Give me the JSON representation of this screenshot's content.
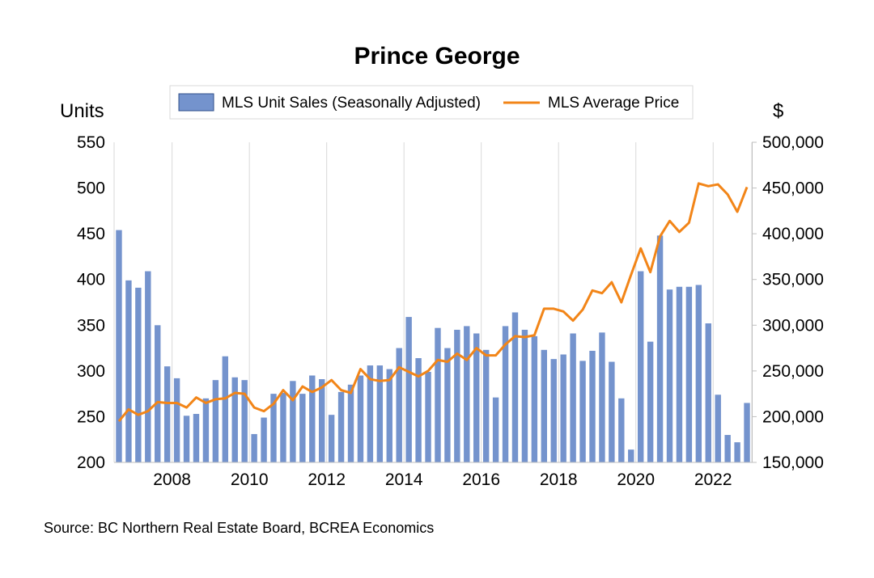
{
  "chart_data": {
    "type": "bar+line",
    "title": "Prince George",
    "y_left_label": "Units",
    "y_right_label": "$",
    "y_left_range": [
      200,
      550
    ],
    "y_left_ticks": [
      "200",
      "250",
      "300",
      "350",
      "400",
      "450",
      "500",
      "550"
    ],
    "y_right_range": [
      150000,
      500000
    ],
    "y_right_ticks": [
      "150,000",
      "200,000",
      "250,000",
      "300,000",
      "350,000",
      "400,000",
      "450,000",
      "500,000"
    ],
    "x_tick_labels": [
      "2008",
      "2010",
      "2012",
      "2014",
      "2016",
      "2018",
      "2020",
      "2022"
    ],
    "grid": "vertical",
    "legend_position": "top",
    "source": "Source:  BC Northern Real Estate Board, BCREA Economics",
    "colors": {
      "bars": "#7493cd",
      "line": "#f28518",
      "grid": "#d9d9d9"
    },
    "series": [
      {
        "name": "MLS Unit Sales (Seasonally Adjusted)",
        "type": "bar",
        "axis": "left",
        "values": [
          454,
          399,
          391,
          409,
          350,
          305,
          292,
          251,
          253,
          270,
          290,
          316,
          293,
          290,
          231,
          249,
          275,
          276,
          289,
          275,
          295,
          291,
          252,
          277,
          285,
          295,
          306,
          306,
          302,
          325,
          359,
          314,
          299,
          347,
          325,
          345,
          349,
          341,
          323,
          271,
          349,
          364,
          345,
          338,
          323,
          313,
          318,
          341,
          311,
          322,
          342,
          310,
          270,
          214,
          409,
          332,
          448,
          389,
          392,
          392,
          394,
          352,
          274,
          230,
          222,
          265
        ]
      },
      {
        "name": "MLS Average Price",
        "type": "line",
        "axis": "right",
        "values": [
          195000,
          208000,
          202000,
          206000,
          216000,
          215000,
          215000,
          210000,
          221000,
          215000,
          219000,
          220000,
          226000,
          225000,
          210000,
          206000,
          214000,
          229000,
          218000,
          233000,
          227000,
          232000,
          240000,
          229000,
          226000,
          252000,
          241000,
          239000,
          240000,
          254000,
          249000,
          244000,
          250000,
          262000,
          260000,
          269000,
          262000,
          275000,
          267000,
          267000,
          279000,
          288000,
          287000,
          289000,
          318000,
          318000,
          315000,
          305000,
          317000,
          338000,
          335000,
          347000,
          325000,
          355000,
          384000,
          358000,
          397000,
          414000,
          402000,
          412000,
          455000,
          452000,
          454000,
          443000,
          424000,
          451000
        ]
      }
    ]
  }
}
